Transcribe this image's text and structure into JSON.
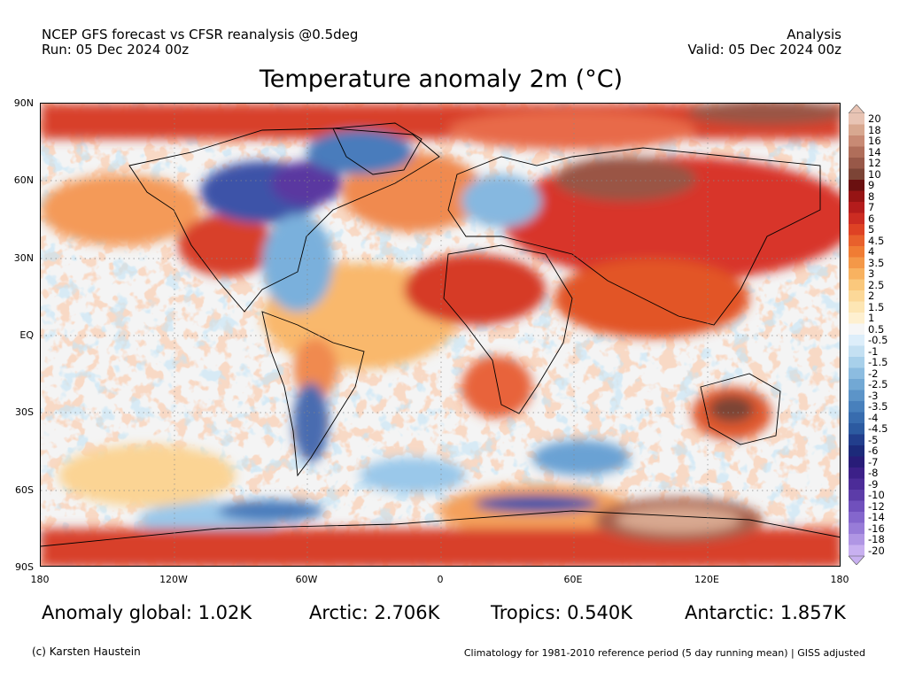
{
  "header": {
    "left_line1": "NCEP GFS forecast vs CFSR reanalysis @0.5deg",
    "left_line2": "Run: 05 Dec 2024 00z",
    "right_line1": "Analysis",
    "right_line2": "Valid: 05 Dec 2024 00z"
  },
  "title": "Temperature anomaly 2m (°C)",
  "map": {
    "lat_labels": [
      "90N",
      "60N",
      "30N",
      "EQ",
      "30S",
      "60S",
      "90S"
    ],
    "lon_labels": [
      "180",
      "120W",
      "60W",
      "0",
      "60E",
      "120E",
      "180"
    ]
  },
  "colorbar": {
    "labels": [
      "20",
      "18",
      "16",
      "14",
      "12",
      "10",
      "9",
      "8",
      "7",
      "6",
      "5",
      "4.5",
      "4",
      "3.5",
      "3",
      "2.5",
      "2",
      "1.5",
      "1",
      "0.5",
      "-0.5",
      "-1",
      "-1.5",
      "-2",
      "-2.5",
      "-3",
      "-3.5",
      "-4",
      "-4.5",
      "-5",
      "-6",
      "-7",
      "-8",
      "-9",
      "-10",
      "-12",
      "-14",
      "-16",
      "-18",
      "-20"
    ],
    "colors": [
      "#e8c4b4",
      "#d8a890",
      "#c88a74",
      "#b06e5a",
      "#985848",
      "#7c4436",
      "#6a1010",
      "#961414",
      "#b41c1c",
      "#cc2c22",
      "#de4224",
      "#e8602c",
      "#f07c34",
      "#f49848",
      "#f8b260",
      "#fac87c",
      "#fcd898",
      "#fde6b4",
      "#fef0d0",
      "#f6f6f6",
      "#ddeefa",
      "#c4e0f2",
      "#a8d0ea",
      "#8cbce0",
      "#72a8d4",
      "#5c94c8",
      "#4880bc",
      "#386cae",
      "#2c5aa0",
      "#223e8c",
      "#1c2a7a",
      "#281c78",
      "#3c2088",
      "#4c2c98",
      "#5c3ca8",
      "#7050bc",
      "#8466cc",
      "#987cd8",
      "#b096e4",
      "#c8b0f0"
    ]
  },
  "stats": {
    "global": "Anomaly global: 1.02K",
    "arctic": "Arctic: 2.706K",
    "tropics": "Tropics: 0.540K",
    "antarctic": "Antarctic: 1.857K"
  },
  "footer": {
    "credit": "(c) Karsten Haustein",
    "note": "Climatology for 1981-2010 reference period (5 day running mean) | GISS adjusted"
  }
}
